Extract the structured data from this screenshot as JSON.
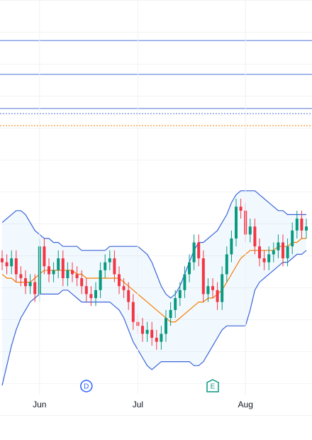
{
  "chart_data": {
    "type": "candlestick",
    "ylim": [
      0,
      100
    ],
    "categories": [
      null,
      null,
      null,
      null,
      null,
      null,
      null,
      null,
      "Jun",
      null,
      null,
      null,
      null,
      null,
      null,
      null,
      null,
      null,
      null,
      null,
      null,
      null,
      null,
      null,
      null,
      null,
      null,
      null,
      null,
      "Jul",
      null,
      null,
      null,
      null,
      null,
      null,
      null,
      null,
      null,
      null,
      null,
      null,
      null,
      null,
      null,
      null,
      null,
      null,
      null,
      null,
      null,
      null,
      "Aug",
      null,
      null,
      null,
      null,
      null,
      null,
      null,
      null,
      null,
      null,
      null,
      null,
      null
    ],
    "open": [
      35,
      34,
      33,
      35,
      31,
      30,
      28,
      29,
      26,
      38,
      33,
      31,
      32,
      35,
      30,
      32,
      31,
      30,
      28,
      26,
      25,
      27,
      32,
      34,
      35,
      31,
      28,
      27,
      24,
      19,
      18,
      16,
      17,
      15,
      14,
      16,
      20,
      22,
      25,
      27,
      31,
      34,
      39,
      35,
      26,
      28,
      27,
      24,
      31,
      36,
      40,
      48,
      47,
      41,
      43,
      38,
      35,
      34,
      36,
      37,
      39,
      35,
      38,
      42,
      45,
      42
    ],
    "high": [
      37,
      36,
      37,
      37,
      33,
      32,
      31,
      31,
      40,
      40,
      35,
      34,
      37,
      37,
      34,
      34,
      33,
      32,
      30,
      28,
      29,
      34,
      36,
      37,
      37,
      33,
      30,
      29,
      26,
      21,
      20,
      19,
      19,
      17,
      18,
      22,
      24,
      27,
      29,
      33,
      36,
      41,
      41,
      37,
      30,
      30,
      29,
      33,
      38,
      42,
      50,
      50,
      49,
      45,
      45,
      40,
      37,
      38,
      39,
      41,
      41,
      40,
      44,
      47,
      47,
      45
    ],
    "low": [
      32,
      31,
      31,
      29,
      28,
      26,
      26,
      24,
      24,
      31,
      29,
      29,
      30,
      28,
      28,
      29,
      28,
      26,
      24,
      23,
      23,
      25,
      30,
      32,
      29,
      26,
      25,
      22,
      17,
      16,
      14,
      14,
      13,
      12,
      12,
      14,
      18,
      20,
      23,
      25,
      29,
      32,
      33,
      24,
      24,
      25,
      22,
      22,
      29,
      34,
      38,
      45,
      39,
      39,
      36,
      33,
      32,
      32,
      34,
      35,
      33,
      33,
      36,
      40,
      40,
      40
    ],
    "close": [
      34,
      33,
      35,
      31,
      30,
      28,
      29,
      26,
      38,
      33,
      31,
      32,
      35,
      30,
      32,
      31,
      30,
      28,
      26,
      25,
      27,
      32,
      34,
      35,
      31,
      28,
      27,
      24,
      19,
      18,
      16,
      17,
      15,
      14,
      16,
      20,
      22,
      25,
      27,
      31,
      34,
      39,
      35,
      26,
      28,
      27,
      24,
      31,
      36,
      40,
      48,
      47,
      41,
      43,
      38,
      35,
      34,
      36,
      37,
      39,
      35,
      38,
      42,
      45,
      42,
      43
    ],
    "up_color": "#089981",
    "down_color": "#f23645",
    "upper": {
      "color": "#3b64d9",
      "values": [
        44,
        45,
        46,
        47,
        47,
        46,
        44,
        42,
        41,
        40,
        40,
        39,
        39,
        38,
        38,
        38,
        38,
        37,
        37,
        37,
        37,
        37,
        37,
        38,
        38,
        38,
        38,
        38,
        38,
        38,
        37,
        36,
        34,
        31,
        28,
        26,
        25,
        26,
        28,
        31,
        34,
        37,
        39,
        39,
        40,
        41,
        42,
        44,
        46,
        49,
        51,
        52,
        52,
        52,
        52,
        51,
        50,
        49,
        48,
        47,
        47,
        46,
        46,
        46,
        46,
        46
      ]
    },
    "middle": {
      "color": "#f57c00",
      "values": [
        31,
        30,
        30,
        29,
        29,
        29,
        29,
        30,
        31,
        32,
        32,
        32,
        32,
        32,
        32,
        32,
        31,
        31,
        30,
        30,
        30,
        30,
        30,
        30,
        30,
        30,
        29,
        28,
        27,
        26,
        25,
        24,
        23,
        22,
        21,
        20,
        19,
        19,
        20,
        21,
        22,
        23,
        24,
        24,
        25,
        25,
        26,
        27,
        29,
        31,
        33,
        35,
        36,
        37,
        37,
        37,
        37,
        37,
        37,
        38,
        38,
        38,
        39,
        39,
        40,
        40
      ]
    },
    "lower": {
      "color": "#3b64d9",
      "values": [
        3,
        8,
        13,
        17,
        20,
        22,
        24,
        25,
        26,
        26,
        26,
        26,
        26,
        27,
        27,
        26,
        25,
        24,
        24,
        24,
        24,
        24,
        24,
        24,
        23,
        22,
        20,
        17,
        14,
        12,
        10,
        8,
        7,
        8,
        9,
        9,
        9,
        9,
        9,
        9,
        9,
        8,
        8,
        9,
        11,
        13,
        15,
        17,
        18,
        18,
        18,
        18,
        18,
        22,
        27,
        29,
        30,
        31,
        32,
        33,
        34,
        34,
        35,
        36,
        36,
        37
      ]
    },
    "band_fill": "rgba(33,150,243,0.06)",
    "levels": [
      {
        "value": 89.8,
        "color": "#4c74d9",
        "style": "solid"
      },
      {
        "value": 81.3,
        "color": "#4c74d9",
        "style": "solid"
      },
      {
        "value": 72.7,
        "color": "#4c74d9",
        "style": "solid"
      },
      {
        "value": 71.4,
        "color": "#4c74d9",
        "style": "dotted"
      },
      {
        "value": 68.4,
        "color": "#f57c00",
        "style": "dotted"
      }
    ],
    "events": [
      {
        "label": "D",
        "index": 18,
        "color": "#2962ff",
        "shape": "circle"
      },
      {
        "label": "E",
        "index": 45,
        "color": "#089981",
        "shape": "pentagon"
      }
    ]
  }
}
